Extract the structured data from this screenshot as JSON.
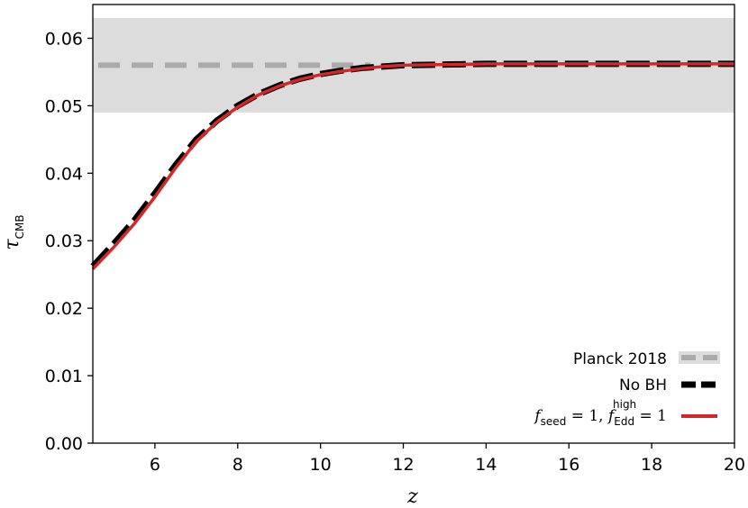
{
  "chart_data": {
    "type": "line",
    "xlabel": "z",
    "ylabel": {
      "main": "τ",
      "sub": "CMB"
    },
    "xlim": [
      4.5,
      20
    ],
    "ylim": [
      0.0,
      0.065
    ],
    "x_ticks": [
      6,
      8,
      10,
      12,
      14,
      16,
      18,
      20
    ],
    "y_ticks": [
      0.0,
      0.01,
      0.02,
      0.03,
      0.04,
      0.05,
      0.06
    ],
    "y_tick_labels": [
      "0.00",
      "0.01",
      "0.02",
      "0.03",
      "0.04",
      "0.05",
      "0.06"
    ],
    "band": {
      "center": 0.056,
      "lower": 0.049,
      "upper": 0.063,
      "x_max": 11.2,
      "color": "#dcdcdc",
      "line_color": "#aaaaaa"
    },
    "series": [
      {
        "name": "No BH",
        "style": "dashed",
        "color": "#000000",
        "x": [
          4.5,
          5.0,
          5.5,
          6.0,
          6.5,
          7.0,
          7.5,
          8.0,
          8.5,
          9.0,
          9.5,
          10.0,
          10.5,
          11.0,
          11.5,
          12.0,
          13.0,
          14.0,
          15.0,
          16.0,
          17.0,
          18.0,
          19.0,
          20.0
        ],
        "y": [
          0.0262,
          0.0295,
          0.033,
          0.037,
          0.0412,
          0.045,
          0.0478,
          0.05,
          0.0517,
          0.053,
          0.054,
          0.0547,
          0.0552,
          0.0556,
          0.0558,
          0.056,
          0.0561,
          0.0562,
          0.0562,
          0.0562,
          0.0562,
          0.0562,
          0.0562,
          0.0562
        ]
      },
      {
        "name": "fseed=1, fEdd_high=1",
        "style": "solid",
        "color": "#d62728",
        "x": [
          4.5,
          5.0,
          5.5,
          6.0,
          6.5,
          7.0,
          7.5,
          8.0,
          8.5,
          9.0,
          9.5,
          10.0,
          10.5,
          11.0,
          11.5,
          12.0,
          13.0,
          14.0,
          15.0,
          16.0,
          17.0,
          18.0,
          19.0,
          20.0
        ],
        "y": [
          0.0258,
          0.029,
          0.0325,
          0.0365,
          0.0408,
          0.0447,
          0.0476,
          0.0498,
          0.0516,
          0.0529,
          0.0539,
          0.0546,
          0.0551,
          0.0555,
          0.0558,
          0.056,
          0.0561,
          0.0562,
          0.0562,
          0.0562,
          0.0562,
          0.0562,
          0.0562,
          0.0562
        ]
      }
    ],
    "legend": {
      "placement": "lower-right",
      "entries": [
        {
          "key": "planck",
          "label": "Planck 2018"
        },
        {
          "key": "nobh",
          "label": "No BH"
        },
        {
          "key": "model",
          "label_parts": {
            "f1": "f",
            "sub1": "seed",
            "eq1": " = 1, ",
            "f2": "f",
            "sup2": "high",
            "sub2": "Edd",
            "eq2": " = 1"
          }
        }
      ]
    },
    "grid": false
  }
}
